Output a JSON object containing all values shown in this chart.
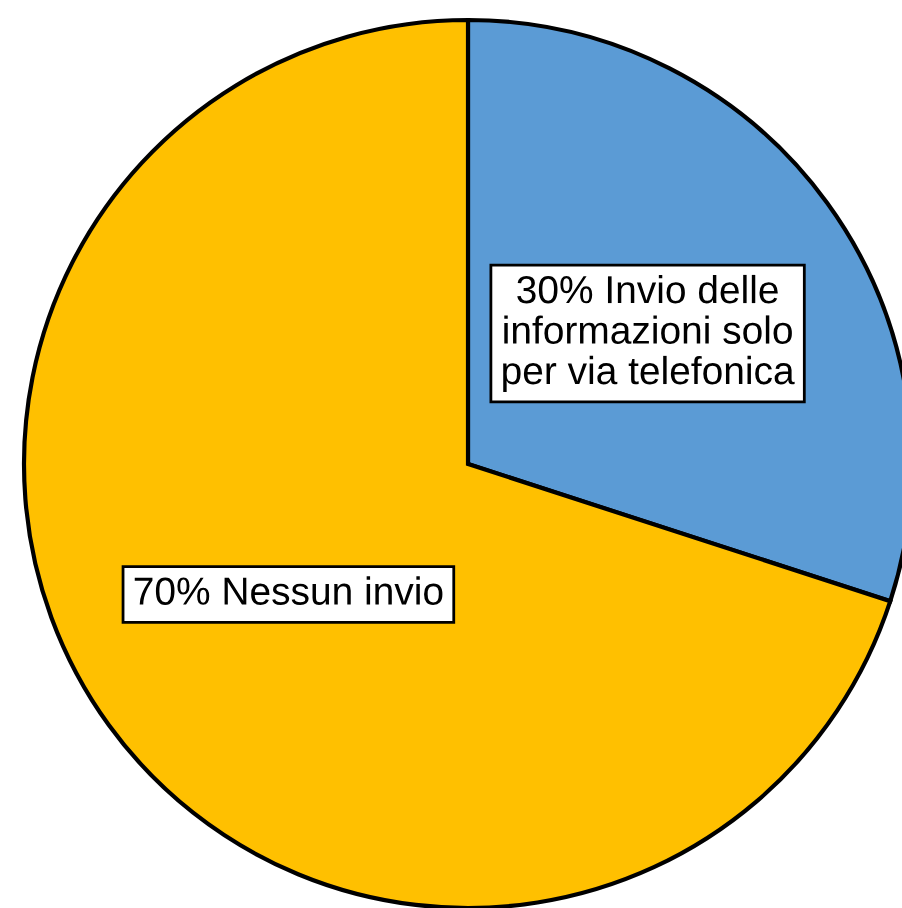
{
  "chart_data": {
    "type": "pie",
    "categories": [
      "Invio delle\ninformazioni solo\nper via telefonica",
      "Nessun invio"
    ],
    "values": [
      30,
      70
    ],
    "value_labels": [
      "30%",
      "70%"
    ],
    "colors": [
      "#5b9bd5",
      "#ffc000"
    ]
  }
}
